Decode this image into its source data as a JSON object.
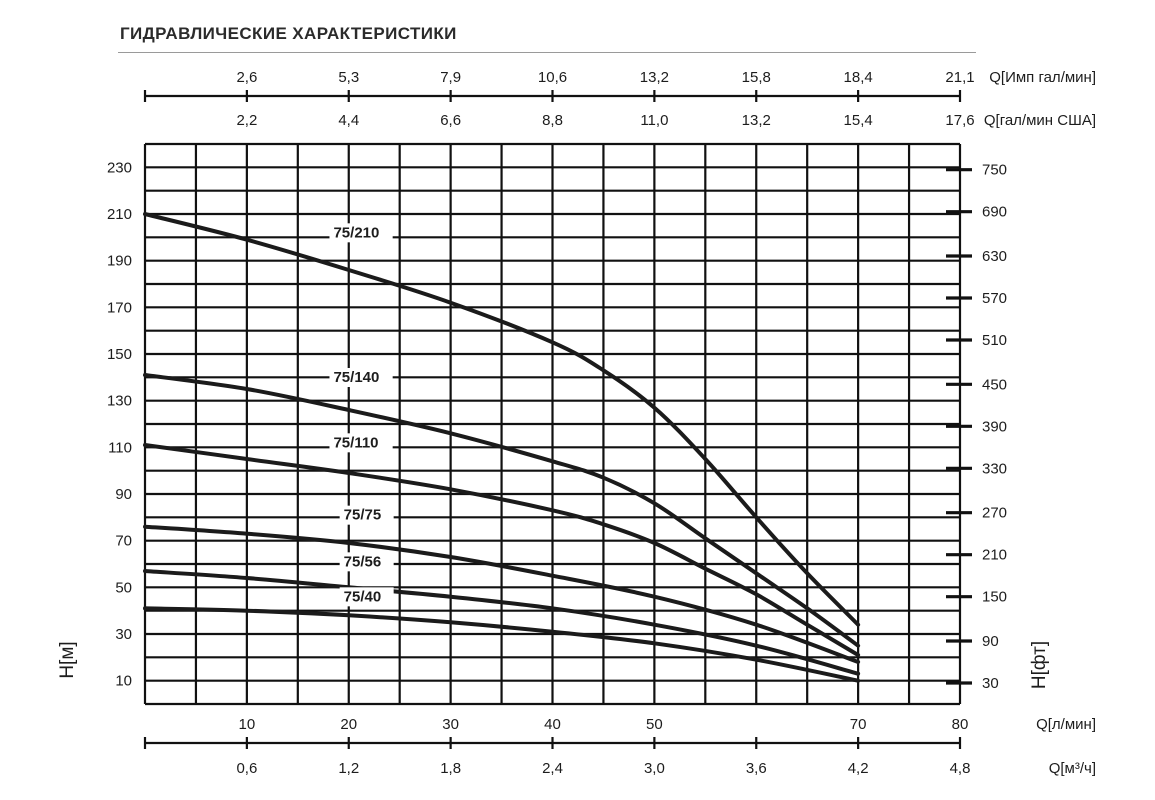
{
  "page": {
    "title": "ГИДРАВЛИЧЕСКИЕ ХАРАКТЕРИСТИКИ"
  },
  "chart_data": {
    "type": "line",
    "x_axis": {
      "label": "Q[л/мин]",
      "range": [
        0,
        80
      ],
      "ticks": [
        10,
        20,
        30,
        40,
        50,
        70,
        80
      ]
    },
    "y_axis_left": {
      "label": "H[м]",
      "range": [
        0,
        240
      ],
      "ticks": [
        10,
        30,
        50,
        70,
        90,
        110,
        130,
        150,
        170,
        190,
        210,
        230
      ]
    },
    "y_axis_right": {
      "label": "H[фт]",
      "tick_labels": [
        "750",
        "690",
        "630",
        "570",
        "510",
        "450",
        "390",
        "330",
        "270",
        "210",
        "150",
        "90",
        "30"
      ],
      "tick_positions_m": [
        229,
        211,
        192,
        174,
        156,
        137,
        119,
        101,
        82,
        64,
        46,
        27,
        9
      ]
    },
    "secondary_x_axes": [
      {
        "position": "top-1",
        "label": "Q[Имп гал/мин]",
        "tick_labels": [
          "2,6",
          "5,3",
          "7,9",
          "10,6",
          "13,2",
          "15,8",
          "18,4",
          "21,1"
        ],
        "tick_positions_lpm": [
          10,
          20,
          30,
          40,
          50,
          60,
          70,
          80
        ]
      },
      {
        "position": "top-2",
        "label": "Q[гал/мин США]",
        "tick_labels": [
          "2,2",
          "4,4",
          "6,6",
          "8,8",
          "11,0",
          "13,2",
          "15,4",
          "17,6"
        ],
        "tick_positions_lpm": [
          10,
          20,
          30,
          40,
          50,
          60,
          70,
          80
        ]
      },
      {
        "position": "bottom",
        "label": "Q[м³/ч]",
        "tick_labels": [
          "0,6",
          "1,2",
          "1,8",
          "2,4",
          "3,0",
          "3,6",
          "4,2",
          "4,8"
        ],
        "tick_positions_lpm": [
          10,
          20,
          30,
          40,
          50,
          60,
          70,
          80
        ]
      }
    ],
    "grid": true,
    "series": [
      {
        "name": "75/210",
        "x": [
          0,
          10,
          20,
          30,
          40,
          45,
          50,
          55,
          60,
          65,
          70
        ],
        "y": [
          210,
          199,
          186,
          172,
          155,
          143,
          127,
          105,
          80,
          56,
          34
        ]
      },
      {
        "name": "75/140",
        "x": [
          0,
          10,
          20,
          30,
          40,
          45,
          50,
          55,
          60,
          65,
          70
        ],
        "y": [
          141,
          135,
          126,
          116,
          104,
          97,
          86,
          71,
          56,
          41,
          25
        ]
      },
      {
        "name": "75/110",
        "x": [
          0,
          10,
          20,
          30,
          40,
          45,
          50,
          55,
          60,
          65,
          70
        ],
        "y": [
          111,
          105,
          99,
          92,
          83,
          77,
          69,
          58,
          47,
          34,
          21
        ]
      },
      {
        "name": "75/75",
        "x": [
          0,
          10,
          20,
          30,
          40,
          50,
          60,
          70
        ],
        "y": [
          76,
          73,
          69,
          63,
          55,
          46,
          34,
          18
        ]
      },
      {
        "name": "75/56",
        "x": [
          0,
          10,
          20,
          30,
          40,
          50,
          60,
          70
        ],
        "y": [
          57,
          54,
          50,
          46,
          41,
          34,
          25,
          13
        ]
      },
      {
        "name": "75/40",
        "x": [
          0,
          10,
          20,
          30,
          40,
          50,
          60,
          70
        ],
        "y": [
          41,
          40,
          38,
          35,
          31,
          26,
          19,
          10
        ]
      }
    ],
    "series_label_positions": [
      {
        "name": "75/210",
        "x": 18.5,
        "y": 200
      },
      {
        "name": "75/140",
        "x": 18.5,
        "y": 138
      },
      {
        "name": "75/110",
        "x": 18.5,
        "y": 110
      },
      {
        "name": "75/75",
        "x": 19.5,
        "y": 79
      },
      {
        "name": "75/56",
        "x": 19.5,
        "y": 59
      },
      {
        "name": "75/40",
        "x": 19.5,
        "y": 44
      }
    ]
  }
}
